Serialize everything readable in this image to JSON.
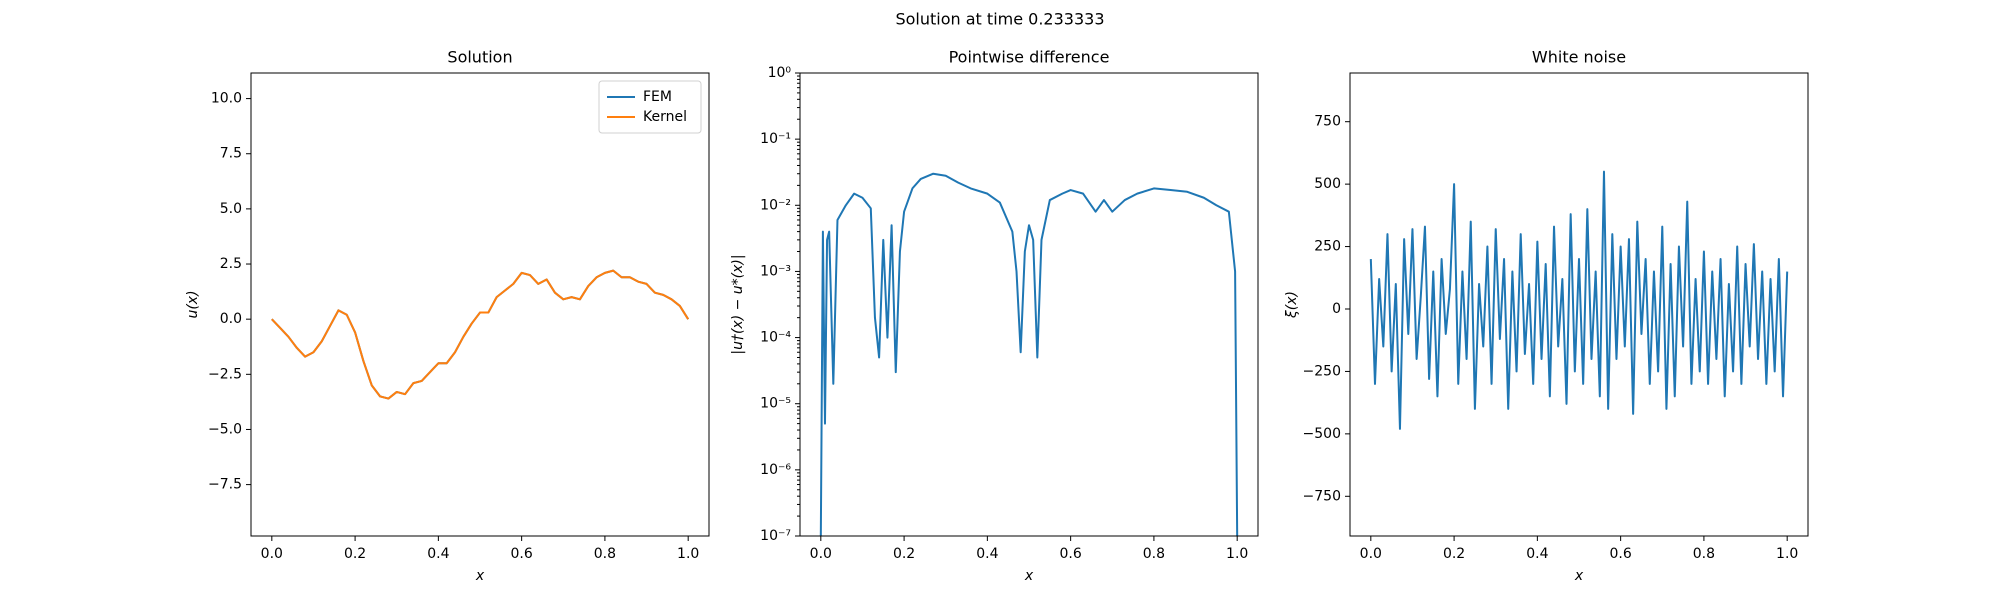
{
  "suptitle": "Solution at time 0.233333",
  "chart_data": [
    {
      "type": "line",
      "title": "Solution",
      "xlabel": "x",
      "ylabel": "u(x)",
      "legend": "upper right",
      "x": [
        0,
        0.02,
        0.04,
        0.06,
        0.08,
        0.1,
        0.12,
        0.14,
        0.16,
        0.18,
        0.2,
        0.22,
        0.24,
        0.26,
        0.28,
        0.3,
        0.32,
        0.34,
        0.36,
        0.38,
        0.4,
        0.42,
        0.44,
        0.46,
        0.48,
        0.5,
        0.52,
        0.54,
        0.56,
        0.58,
        0.6,
        0.62,
        0.64,
        0.66,
        0.68,
        0.7,
        0.72,
        0.74,
        0.76,
        0.78,
        0.8,
        0.82,
        0.84,
        0.86,
        0.88,
        0.9,
        0.92,
        0.94,
        0.96,
        0.98,
        1.0
      ],
      "series": [
        {
          "name": "FEM",
          "color": "#1f77b4",
          "values": [
            0,
            -0.4,
            -0.8,
            -1.3,
            -1.7,
            -1.5,
            -1.0,
            -0.3,
            0.4,
            0.2,
            -0.6,
            -1.9,
            -3.0,
            -3.5,
            -3.6,
            -3.3,
            -3.4,
            -2.9,
            -2.8,
            -2.4,
            -2.0,
            -2.0,
            -1.5,
            -0.8,
            -0.2,
            0.3,
            0.3,
            1.0,
            1.3,
            1.6,
            2.1,
            2.0,
            1.6,
            1.8,
            1.2,
            0.9,
            1.0,
            0.9,
            1.5,
            1.9,
            2.1,
            2.2,
            1.9,
            1.9,
            1.7,
            1.6,
            1.2,
            1.1,
            0.9,
            0.6,
            0
          ]
        },
        {
          "name": "Kernel",
          "color": "#ff7f0e",
          "values": [
            0,
            -0.4,
            -0.8,
            -1.3,
            -1.7,
            -1.5,
            -1.0,
            -0.3,
            0.4,
            0.2,
            -0.6,
            -1.9,
            -3.0,
            -3.5,
            -3.6,
            -3.3,
            -3.4,
            -2.9,
            -2.8,
            -2.4,
            -2.0,
            -2.0,
            -1.5,
            -0.8,
            -0.2,
            0.3,
            0.3,
            1.0,
            1.3,
            1.6,
            2.1,
            2.0,
            1.6,
            1.8,
            1.2,
            0.9,
            1.0,
            0.9,
            1.5,
            1.9,
            2.1,
            2.2,
            1.9,
            1.9,
            1.7,
            1.6,
            1.2,
            1.1,
            0.9,
            0.6,
            0
          ]
        }
      ],
      "xlim": [
        -0.05,
        1.05
      ],
      "ylim": [
        -9.83,
        11.16
      ],
      "xticks": [
        {
          "value": 0,
          "label": "0.0"
        },
        {
          "value": 0.2,
          "label": "0.2"
        },
        {
          "value": 0.4,
          "label": "0.4"
        },
        {
          "value": 0.6,
          "label": "0.6"
        },
        {
          "value": 0.8,
          "label": "0.8"
        },
        {
          "value": 1,
          "label": "1.0"
        }
      ],
      "yticks": [
        {
          "value": -7.5,
          "label": "−7.5"
        },
        {
          "value": -5,
          "label": "−5.0"
        },
        {
          "value": -2.5,
          "label": "−2.5"
        },
        {
          "value": 0,
          "label": "0.0"
        },
        {
          "value": 2.5,
          "label": "2.5"
        },
        {
          "value": 5,
          "label": "5.0"
        },
        {
          "value": 7.5,
          "label": "7.5"
        },
        {
          "value": 10,
          "label": "10.0"
        }
      ]
    },
    {
      "type": "line",
      "title": "Pointwise difference",
      "xlabel": "x",
      "ylabel": "|u†(x) − u*(x)|",
      "yscale": "log",
      "x": [
        0,
        0.005,
        0.01,
        0.015,
        0.02,
        0.03,
        0.04,
        0.06,
        0.08,
        0.1,
        0.12,
        0.13,
        0.14,
        0.15,
        0.16,
        0.17,
        0.18,
        0.19,
        0.2,
        0.22,
        0.24,
        0.27,
        0.3,
        0.33,
        0.36,
        0.4,
        0.43,
        0.46,
        0.47,
        0.48,
        0.49,
        0.5,
        0.51,
        0.52,
        0.53,
        0.55,
        0.58,
        0.6,
        0.63,
        0.66,
        0.68,
        0.7,
        0.73,
        0.76,
        0.8,
        0.84,
        0.88,
        0.92,
        0.95,
        0.98,
        0.995,
        1.0
      ],
      "series": [
        {
          "name": "difference",
          "color": "#1f77b4",
          "values": [
            1e-07,
            0.004,
            5e-06,
            0.003,
            0.004,
            2e-05,
            0.006,
            0.01,
            0.015,
            0.013,
            0.009,
            0.0002,
            5e-05,
            0.003,
            0.0001,
            0.005,
            3e-05,
            0.002,
            0.008,
            0.018,
            0.025,
            0.03,
            0.028,
            0.022,
            0.018,
            0.015,
            0.011,
            0.004,
            0.001,
            6e-05,
            0.002,
            0.005,
            0.003,
            5e-05,
            0.003,
            0.012,
            0.015,
            0.017,
            0.015,
            0.008,
            0.012,
            0.008,
            0.012,
            0.015,
            0.018,
            0.017,
            0.016,
            0.013,
            0.01,
            0.008,
            0.001,
            1e-07
          ]
        }
      ],
      "xlim": [
        -0.05,
        1.05
      ],
      "ylim": [
        1e-07,
        1
      ],
      "xticks": [
        {
          "value": 0,
          "label": "0.0"
        },
        {
          "value": 0.2,
          "label": "0.2"
        },
        {
          "value": 0.4,
          "label": "0.4"
        },
        {
          "value": 0.6,
          "label": "0.6"
        },
        {
          "value": 0.8,
          "label": "0.8"
        },
        {
          "value": 1,
          "label": "1.0"
        }
      ],
      "yticks": [
        {
          "value": 1e-07,
          "label": "10⁻⁷"
        },
        {
          "value": 1e-06,
          "label": "10⁻⁶"
        },
        {
          "value": 1e-05,
          "label": "10⁻⁵"
        },
        {
          "value": 0.0001,
          "label": "10⁻⁴"
        },
        {
          "value": 0.001,
          "label": "10⁻³"
        },
        {
          "value": 0.01,
          "label": "10⁻²"
        },
        {
          "value": 0.1,
          "label": "10⁻¹"
        },
        {
          "value": 1,
          "label": "10⁰"
        }
      ]
    },
    {
      "type": "line",
      "title": "White noise",
      "xlabel": "x",
      "ylabel": "ξ(x)",
      "x": [
        0,
        0.01,
        0.02,
        0.03,
        0.04,
        0.05,
        0.06,
        0.07,
        0.08,
        0.09,
        0.1,
        0.11,
        0.12,
        0.13,
        0.14,
        0.15,
        0.16,
        0.17,
        0.18,
        0.19,
        0.2,
        0.21,
        0.22,
        0.23,
        0.24,
        0.25,
        0.26,
        0.27,
        0.28,
        0.29,
        0.3,
        0.31,
        0.32,
        0.33,
        0.34,
        0.35,
        0.36,
        0.37,
        0.38,
        0.39,
        0.4,
        0.41,
        0.42,
        0.43,
        0.44,
        0.45,
        0.46,
        0.47,
        0.48,
        0.49,
        0.5,
        0.51,
        0.52,
        0.53,
        0.54,
        0.55,
        0.56,
        0.57,
        0.58,
        0.59,
        0.6,
        0.61,
        0.62,
        0.63,
        0.64,
        0.65,
        0.66,
        0.67,
        0.68,
        0.69,
        0.7,
        0.71,
        0.72,
        0.73,
        0.74,
        0.75,
        0.76,
        0.77,
        0.78,
        0.79,
        0.8,
        0.81,
        0.82,
        0.83,
        0.84,
        0.85,
        0.86,
        0.87,
        0.88,
        0.89,
        0.9,
        0.91,
        0.92,
        0.93,
        0.94,
        0.95,
        0.96,
        0.97,
        0.98,
        0.99,
        1.0
      ],
      "series": [
        {
          "name": "noise",
          "color": "#1f77b4",
          "values": [
            200,
            -300,
            120,
            -150,
            300,
            -250,
            100,
            -480,
            280,
            -100,
            320,
            -200,
            50,
            330,
            -280,
            150,
            -350,
            200,
            -100,
            80,
            500,
            -300,
            150,
            -200,
            350,
            -400,
            100,
            -150,
            250,
            -300,
            320,
            -120,
            200,
            -400,
            150,
            -250,
            300,
            -180,
            100,
            -300,
            270,
            -200,
            180,
            -350,
            330,
            -150,
            120,
            -380,
            380,
            -250,
            200,
            -300,
            400,
            -200,
            150,
            -350,
            550,
            -400,
            300,
            -200,
            250,
            -150,
            280,
            -420,
            350,
            -100,
            200,
            -300,
            150,
            -250,
            330,
            -400,
            180,
            -350,
            250,
            -150,
            430,
            -300,
            120,
            -250,
            230,
            -300,
            150,
            -200,
            200,
            -350,
            100,
            -250,
            250,
            -300,
            180,
            -150,
            260,
            -200,
            150,
            -300,
            120,
            -250,
            200,
            -350,
            150
          ]
        }
      ],
      "xlim": [
        -0.05,
        1.05
      ],
      "ylim": [
        -909,
        945
      ],
      "xticks": [
        {
          "value": 0,
          "label": "0.0"
        },
        {
          "value": 0.2,
          "label": "0.2"
        },
        {
          "value": 0.4,
          "label": "0.4"
        },
        {
          "value": 0.6,
          "label": "0.6"
        },
        {
          "value": 0.8,
          "label": "0.8"
        },
        {
          "value": 1,
          "label": "1.0"
        }
      ],
      "yticks": [
        {
          "value": -750,
          "label": "−750"
        },
        {
          "value": -500,
          "label": "−500"
        },
        {
          "value": -250,
          "label": "−250"
        },
        0,
        250,
        500,
        750
      ]
    }
  ]
}
